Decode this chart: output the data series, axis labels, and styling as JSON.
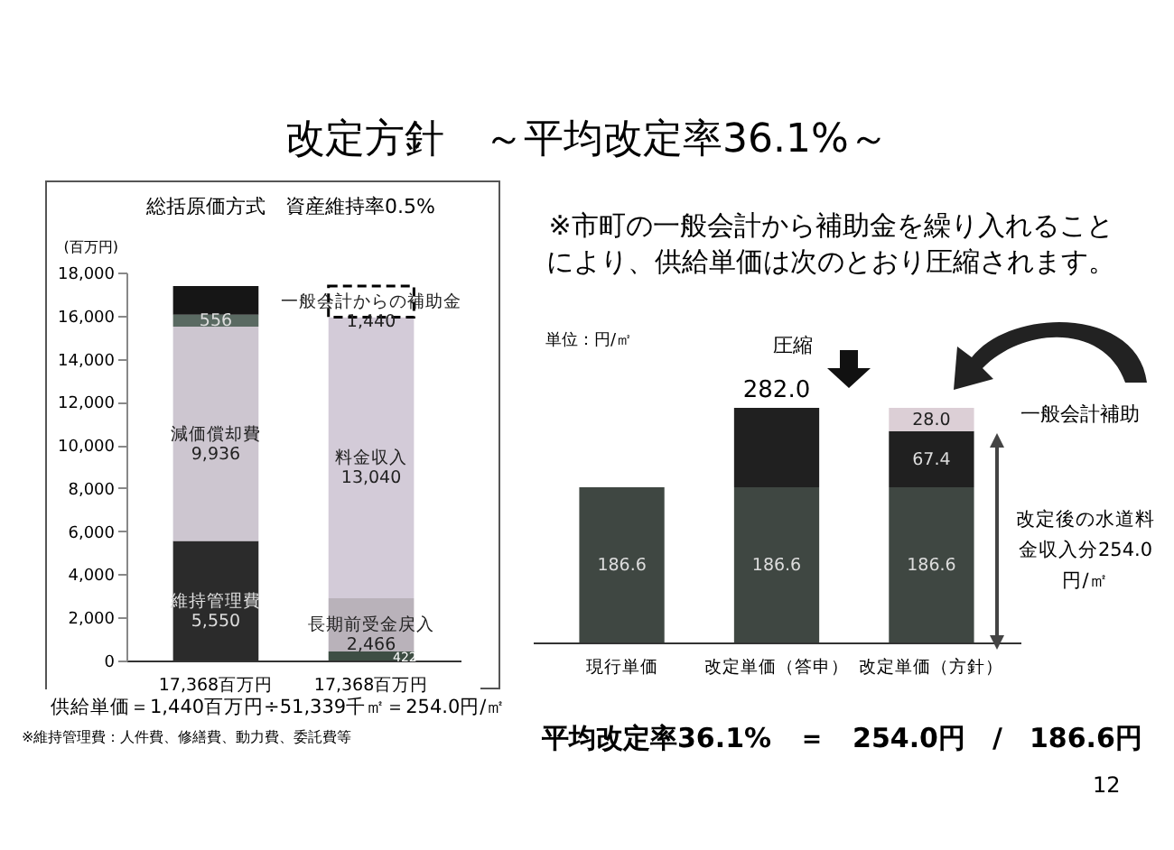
{
  "chart_data": [
    {
      "type": "bar",
      "title": "改定方針　～平均改定率36.1%～",
      "subtitle": "総括原価方式　資産維持率0.5%",
      "ylabel": "(百万円)",
      "categories": [
        "17,368百万円",
        "17,368百万円"
      ],
      "stacked": true,
      "ylim": [
        0,
        18000
      ],
      "yticks": [
        0,
        {
          "value": 2000,
          "label": "2,000"
        },
        {
          "value": 4000,
          "label": "4,000"
        },
        {
          "value": 6000,
          "label": "6,000"
        },
        {
          "value": 8000,
          "label": "8,000"
        },
        {
          "value": 10000,
          "label": "10,000"
        },
        {
          "value": 12000,
          "label": "12,000"
        },
        {
          "value": 14000,
          "label": "14,000"
        },
        {
          "value": 16000,
          "label": "16,000"
        },
        {
          "value": 18000,
          "label": "18,000"
        }
      ],
      "series": [
        {
          "name": "維持管理費",
          "color": "#2b2b2b",
          "values": [
            5550,
            null
          ],
          "value_labels": [
            "5,550",
            null
          ]
        },
        {
          "name": "減価償却費",
          "color": "#cdc6d0",
          "values": [
            9936,
            null
          ],
          "value_labels": [
            "9,936",
            null
          ]
        },
        {
          "color": "#5a6a62",
          "values": [
            556,
            null
          ],
          "value_labels": [
            "556",
            null
          ]
        },
        {
          "color": "#161616",
          "values": [
            1330,
            null
          ]
        },
        {
          "color": "#3e4e44",
          "values": [
            null,
            422
          ],
          "value_labels": [
            null,
            "422"
          ]
        },
        {
          "name": "長期前受金戻入",
          "color": "#b9b2ba",
          "values": [
            null,
            2466
          ],
          "value_labels": [
            null,
            "2,466"
          ]
        },
        {
          "name": "料金収入",
          "color": "#d3cbd8",
          "values": [
            null,
            13040
          ],
          "value_labels": [
            null,
            "13,040"
          ]
        },
        {
          "name": "一般会計からの補助金",
          "color": "#ffffff",
          "line_style": "dashed",
          "values": [
            null,
            1440
          ],
          "value_labels": [
            null,
            "1,440"
          ]
        }
      ],
      "annotations": [
        "供給単価＝1,440百万円÷51,339千㎡＝254.0円/㎡",
        "※維持管理費：人件費、修繕費、動力費、委託費等"
      ]
    },
    {
      "type": "bar",
      "categories": [
        "現行単価",
        "改定単価（答申）",
        "改定単価（方針）"
      ],
      "stacked": true,
      "series": [
        {
          "color": "#3f4742",
          "values": [
            186.6,
            186.6,
            186.6
          ],
          "value_labels": [
            "186.6",
            "186.6",
            "186.6"
          ]
        },
        {
          "color": "#202020",
          "values": [
            null,
            95.4,
            67.4
          ],
          "value_labels": [
            null,
            null,
            "67.4"
          ]
        },
        {
          "color": "#dccfd6",
          "values": [
            null,
            null,
            28.0
          ],
          "value_labels": [
            null,
            null,
            "28.0"
          ]
        }
      ],
      "totals": [
        null,
        "282.0",
        null
      ],
      "annotations": [
        "※市町の一般会計から補助金を繰り入れることにより、供給単価は次のとおり圧縮されます。",
        "単位：円/㎡",
        "圧縮",
        "一般会計補助",
        "改定後の水道料金収入分254.0円/㎡",
        "平均改定率36.1%　＝　254.0円　/　186.6円",
        "12"
      ]
    }
  ]
}
